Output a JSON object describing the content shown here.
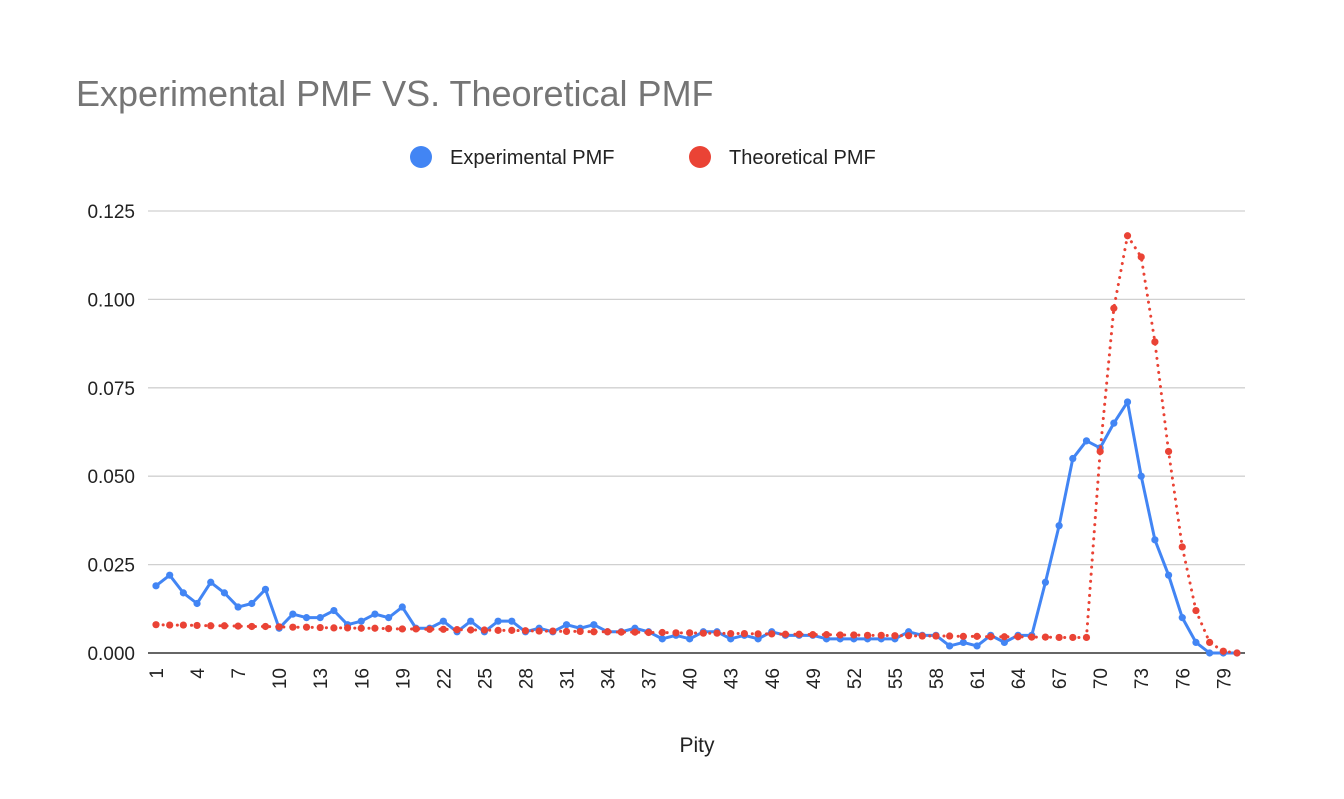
{
  "chart_data": {
    "type": "line",
    "title": "Experimental PMF VS. Theoretical PMF",
    "xlabel": "Pity",
    "ylabel": "",
    "x": [
      1,
      2,
      3,
      4,
      5,
      6,
      7,
      8,
      9,
      10,
      11,
      12,
      13,
      14,
      15,
      16,
      17,
      18,
      19,
      20,
      21,
      22,
      23,
      24,
      25,
      26,
      27,
      28,
      29,
      30,
      31,
      32,
      33,
      34,
      35,
      36,
      37,
      38,
      39,
      40,
      41,
      42,
      43,
      44,
      45,
      46,
      47,
      48,
      49,
      50,
      51,
      52,
      53,
      54,
      55,
      56,
      57,
      58,
      59,
      60,
      61,
      62,
      63,
      64,
      65,
      66,
      67,
      68,
      69,
      70,
      71,
      72,
      73,
      74,
      75,
      76,
      77,
      78,
      79,
      80
    ],
    "x_tick_labels": [
      "1",
      "4",
      "7",
      "10",
      "13",
      "16",
      "19",
      "22",
      "25",
      "28",
      "31",
      "34",
      "37",
      "40",
      "43",
      "46",
      "49",
      "52",
      "55",
      "58",
      "61",
      "64",
      "67",
      "70",
      "73",
      "76",
      "79"
    ],
    "ylim": [
      0,
      0.125
    ],
    "y_tick_labels": [
      "0.000",
      "0.025",
      "0.050",
      "0.075",
      "0.100",
      "0.125"
    ],
    "y_ticks": [
      0,
      0.025,
      0.05,
      0.075,
      0.1,
      0.125
    ],
    "grid": true,
    "legend_position": "top",
    "series": [
      {
        "name": "Experimental PMF",
        "color": "#4285f4",
        "style": "solid",
        "values": [
          0.019,
          0.022,
          0.017,
          0.014,
          0.02,
          0.017,
          0.013,
          0.014,
          0.018,
          0.007,
          0.011,
          0.01,
          0.01,
          0.012,
          0.008,
          0.009,
          0.011,
          0.01,
          0.013,
          0.007,
          0.007,
          0.009,
          0.006,
          0.009,
          0.006,
          0.009,
          0.009,
          0.006,
          0.007,
          0.006,
          0.008,
          0.007,
          0.008,
          0.006,
          0.006,
          0.007,
          0.006,
          0.004,
          0.005,
          0.004,
          0.006,
          0.006,
          0.004,
          0.005,
          0.004,
          0.006,
          0.005,
          0.005,
          0.005,
          0.004,
          0.004,
          0.004,
          0.004,
          0.004,
          0.004,
          0.006,
          0.005,
          0.005,
          0.002,
          0.003,
          0.002,
          0.005,
          0.003,
          0.005,
          0.005,
          0.02,
          0.036,
          0.055,
          0.06,
          0.058,
          0.065,
          0.071,
          0.05,
          0.032,
          0.022,
          0.01,
          0.003,
          0.0,
          0.0,
          0.0
        ]
      },
      {
        "name": "Theoretical PMF",
        "color": "#ea4335",
        "style": "dotted",
        "values": [
          0.008,
          0.0079,
          0.0079,
          0.0078,
          0.0077,
          0.0077,
          0.0076,
          0.0075,
          0.0075,
          0.0074,
          0.0073,
          0.0073,
          0.0072,
          0.0071,
          0.0071,
          0.007,
          0.007,
          0.0069,
          0.0068,
          0.0068,
          0.0067,
          0.0067,
          0.0066,
          0.0065,
          0.0065,
          0.0064,
          0.0064,
          0.0063,
          0.0062,
          0.0062,
          0.0061,
          0.0061,
          0.006,
          0.006,
          0.0059,
          0.0059,
          0.0058,
          0.0058,
          0.0057,
          0.0057,
          0.0056,
          0.0056,
          0.0055,
          0.0055,
          0.0054,
          0.0054,
          0.0053,
          0.0053,
          0.0052,
          0.0052,
          0.0051,
          0.0051,
          0.005,
          0.005,
          0.0049,
          0.0049,
          0.0048,
          0.0048,
          0.0048,
          0.0047,
          0.0047,
          0.0046,
          0.0046,
          0.0046,
          0.0045,
          0.0045,
          0.0044,
          0.0044,
          0.0044,
          0.057,
          0.0975,
          0.118,
          0.112,
          0.088,
          0.057,
          0.03,
          0.012,
          0.003,
          0.0005,
          0.0
        ]
      }
    ]
  }
}
